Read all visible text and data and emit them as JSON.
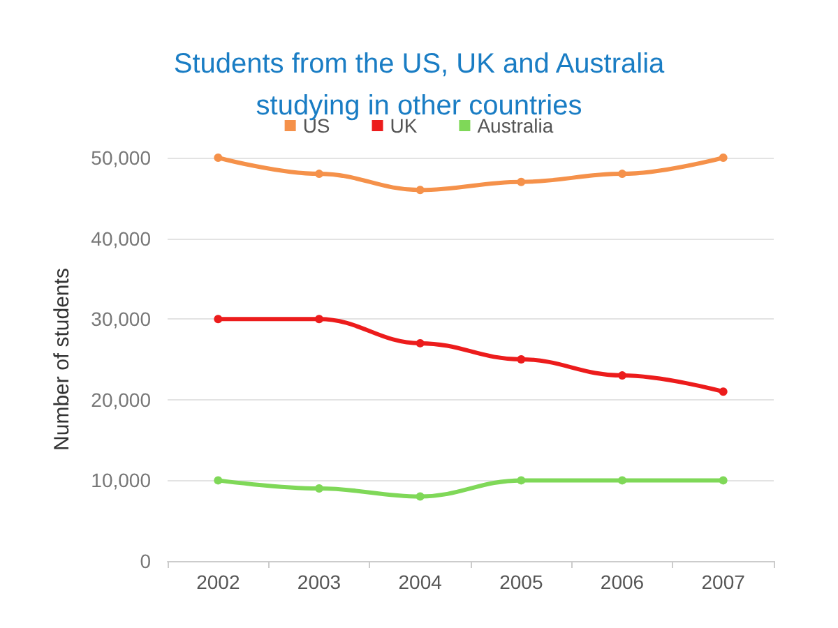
{
  "chart_data": {
    "type": "line",
    "title": "Students from the US, UK and Australia\nstudying in other countries",
    "ylabel": "Number of students",
    "categories": [
      "2002",
      "2003",
      "2004",
      "2005",
      "2006",
      "2007"
    ],
    "series": [
      {
        "name": "US",
        "color": "#f5914a",
        "values": [
          50000,
          48000,
          46000,
          47000,
          48000,
          50000
        ]
      },
      {
        "name": "UK",
        "color": "#ec1c1c",
        "values": [
          30000,
          30000,
          27000,
          25000,
          23000,
          21000
        ]
      },
      {
        "name": "Australia",
        "color": "#7fd858",
        "values": [
          10000,
          9000,
          8000,
          10000,
          10000,
          10000
        ]
      }
    ],
    "ylim": [
      0,
      50000
    ],
    "yticks": [
      {
        "value": 0,
        "label": "0"
      },
      {
        "value": 10000,
        "label": "10,000"
      },
      {
        "value": 20000,
        "label": "20,000"
      },
      {
        "value": 30000,
        "label": "30,000"
      },
      {
        "value": 40000,
        "label": "40,000"
      },
      {
        "value": 50000,
        "label": "50,000"
      }
    ],
    "grid": "y",
    "legend": "top",
    "marker": "circle",
    "line_style": "solid"
  }
}
